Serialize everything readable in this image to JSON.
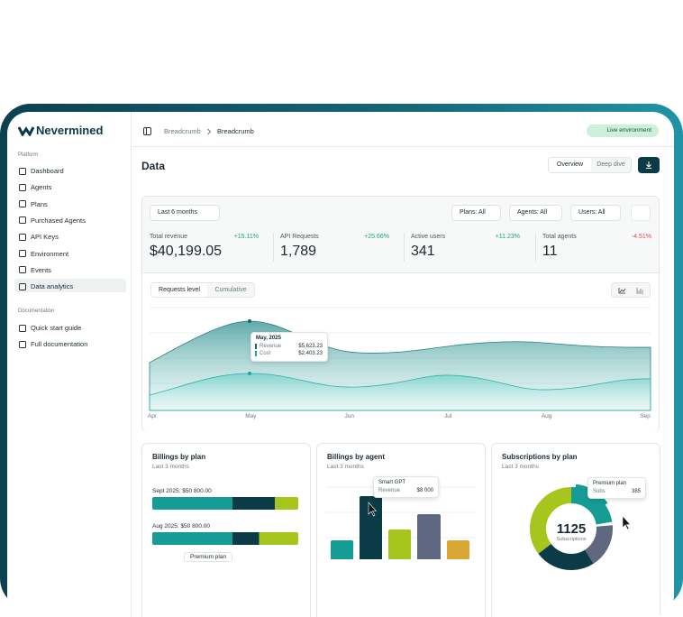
{
  "sidebar": {
    "brand": "Nevermined",
    "sections": [
      {
        "title": "Platform",
        "items": [
          "Dashboard",
          "Agents",
          "Plans",
          "Purchased Agents",
          "API Keys",
          "Environment",
          "Events",
          "Data analytics"
        ]
      },
      {
        "title": "Documentation",
        "items": [
          "Quick start guide",
          "Full documentation"
        ]
      }
    ]
  },
  "header": {
    "breadcrumbs": [
      "Breadcrumb",
      "Breadcrumb"
    ],
    "badge": "Live environment"
  },
  "page": {
    "title": "Data",
    "tabs": [
      "Overview",
      "Deep dive"
    ]
  },
  "filters": {
    "period": "Last 6 months",
    "selects": [
      "Plans: All",
      "Agents: All",
      "Users: All"
    ]
  },
  "kpis": [
    {
      "label": "Total revenue",
      "change": "+15.11%",
      "value": "$40,199.05"
    },
    {
      "label": "API Requests",
      "change": "+25.66%",
      "value": "1,789"
    },
    {
      "label": "Active users",
      "change": "+11.23%",
      "value": "341"
    },
    {
      "label": "Total agents",
      "change": "-4.51%",
      "value": "11"
    }
  ],
  "chart": {
    "toggles": [
      "Requests level",
      "Cumulative"
    ],
    "x_labels": [
      "Apr",
      "May",
      "Jun",
      "Jul",
      "Aug",
      "Sep"
    ],
    "tooltip": {
      "title": "May, 2025",
      "rows": [
        {
          "label": "Revenue",
          "value": "$5,623.23"
        },
        {
          "label": "Cost",
          "value": "$2,403.23"
        }
      ]
    }
  },
  "cards": [
    {
      "title": "Billings by plan",
      "subtitle": "Last 3 months",
      "rows": [
        "Sept 2025: $50 800.00",
        "Aug 2025: $50 800.00"
      ],
      "footer": "Premium plan"
    },
    {
      "title": "Billings by agent",
      "subtitle": "Last 3 months",
      "tooltip": {
        "title": "Smart GPT",
        "label": "Revenue",
        "value": "$8 000"
      }
    },
    {
      "title": "Subscriptions by plan",
      "subtitle": "Last 3 months",
      "center_value": "1125",
      "center_label": "Subscriptions",
      "tooltip": {
        "title": "Premium plan",
        "label": "Subs",
        "value": "385"
      }
    }
  ]
}
